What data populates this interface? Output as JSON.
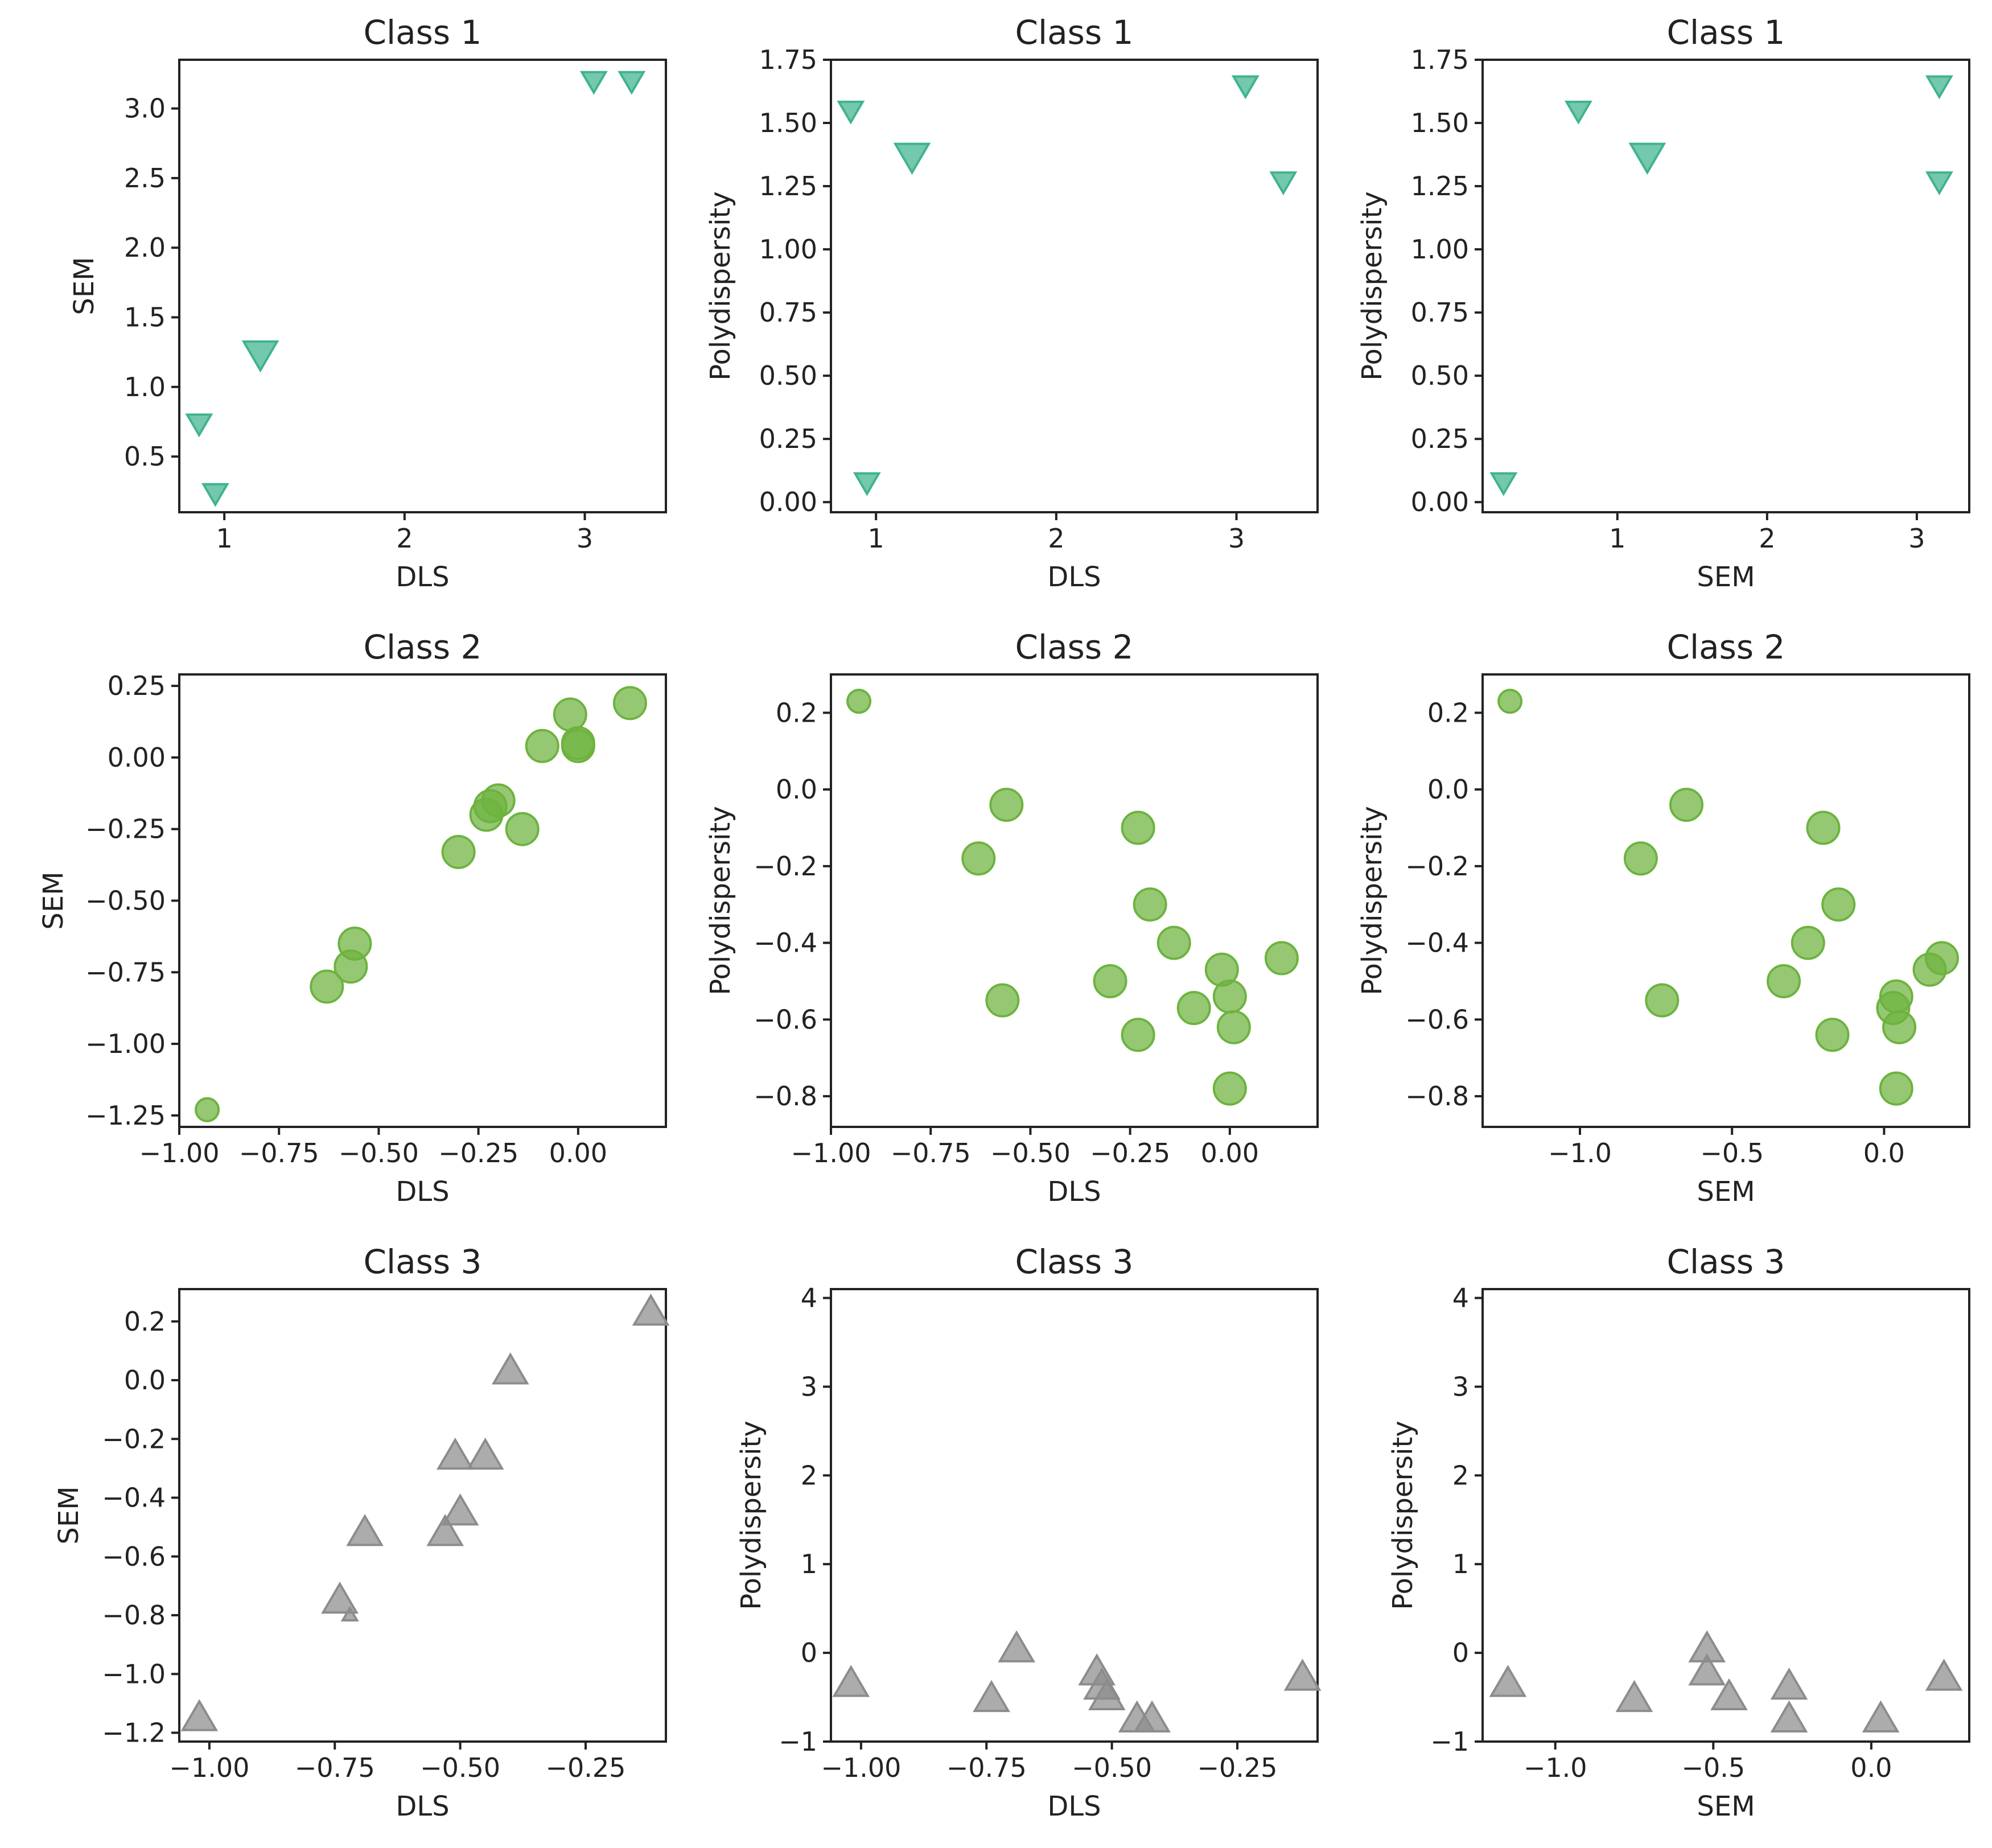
{
  "figure": {
    "style": {
      "class1_color": "#3fb38f",
      "class2_color": "#6db33f",
      "class3_color": "#8c8c8c"
    }
  },
  "chart_data": [
    {
      "type": "scatter",
      "title": "Class 1",
      "xlabel": "DLS",
      "ylabel": "SEM",
      "xlim": [
        0.75,
        3.45
      ],
      "ylim": [
        0.1,
        3.35
      ],
      "xticks": [
        1,
        2,
        3
      ],
      "xtick_labels": [
        "1",
        "2",
        "3"
      ],
      "yticks": [
        0.5,
        1.0,
        1.5,
        2.0,
        2.5,
        3.0
      ],
      "ytick_labels": [
        "0.5",
        "1.0",
        "1.5",
        "2.0",
        "2.5",
        "3.0"
      ],
      "marker": "triangle-down",
      "color_key": "class1_color",
      "points": [
        [
          0.86,
          0.74,
          1
        ],
        [
          0.95,
          0.24,
          1
        ],
        [
          1.2,
          1.24,
          1.4
        ],
        [
          3.05,
          3.2,
          1
        ],
        [
          3.26,
          3.2,
          1
        ]
      ]
    },
    {
      "type": "scatter",
      "title": "Class 1",
      "xlabel": "DLS",
      "ylabel": "Polydispersity",
      "xlim": [
        0.75,
        3.45
      ],
      "ylim": [
        -0.04,
        1.75
      ],
      "xticks": [
        1,
        2,
        3
      ],
      "xtick_labels": [
        "1",
        "2",
        "3"
      ],
      "yticks": [
        0.0,
        0.25,
        0.5,
        0.75,
        1.0,
        1.25,
        1.5,
        1.75
      ],
      "ytick_labels": [
        "0.00",
        "0.25",
        "0.50",
        "0.75",
        "1.00",
        "1.25",
        "1.50",
        "1.75"
      ],
      "marker": "triangle-down",
      "color_key": "class1_color",
      "points": [
        [
          0.86,
          1.55,
          1
        ],
        [
          0.95,
          0.08,
          1
        ],
        [
          1.2,
          1.37,
          1.4
        ],
        [
          3.05,
          1.65,
          1
        ],
        [
          3.26,
          1.27,
          1
        ]
      ]
    },
    {
      "type": "scatter",
      "title": "Class 1",
      "xlabel": "SEM",
      "ylabel": "Polydispersity",
      "xlim": [
        0.1,
        3.35
      ],
      "ylim": [
        -0.04,
        1.75
      ],
      "xticks": [
        1,
        2,
        3
      ],
      "xtick_labels": [
        "1",
        "2",
        "3"
      ],
      "yticks": [
        0.0,
        0.25,
        0.5,
        0.75,
        1.0,
        1.25,
        1.5,
        1.75
      ],
      "ytick_labels": [
        "0.00",
        "0.25",
        "0.50",
        "0.75",
        "1.00",
        "1.25",
        "1.50",
        "1.75"
      ],
      "marker": "triangle-down",
      "color_key": "class1_color",
      "points": [
        [
          0.24,
          0.08,
          1
        ],
        [
          0.74,
          1.55,
          1
        ],
        [
          1.2,
          1.37,
          1.4
        ],
        [
          3.15,
          1.65,
          1
        ],
        [
          3.15,
          1.27,
          1
        ]
      ]
    },
    {
      "type": "scatter",
      "title": "Class 2",
      "xlabel": "DLS",
      "ylabel": "SEM",
      "xlim": [
        -1.0,
        0.22
      ],
      "ylim": [
        -1.29,
        0.29
      ],
      "xticks": [
        -1.0,
        -0.75,
        -0.5,
        -0.25,
        0.0
      ],
      "xtick_labels": [
        "−1.00",
        "−0.75",
        "−0.50",
        "−0.25",
        "0.00"
      ],
      "yticks": [
        -1.25,
        -1.0,
        -0.75,
        -0.5,
        -0.25,
        0.0,
        0.25
      ],
      "ytick_labels": [
        "−1.25",
        "−1.00",
        "−0.75",
        "−0.50",
        "−0.25",
        "0.00",
        "0.25"
      ],
      "marker": "circle",
      "color_key": "class2_color",
      "points": [
        [
          -0.93,
          -1.23,
          1
        ],
        [
          -0.63,
          -0.8,
          1.4
        ],
        [
          -0.57,
          -0.73,
          1.4
        ],
        [
          -0.56,
          -0.65,
          1.4
        ],
        [
          -0.3,
          -0.33,
          1.4
        ],
        [
          -0.23,
          -0.2,
          1.4
        ],
        [
          -0.22,
          -0.17,
          1.4
        ],
        [
          -0.2,
          -0.15,
          1.4
        ],
        [
          -0.14,
          -0.25,
          1.4
        ],
        [
          -0.09,
          0.04,
          1.4
        ],
        [
          -0.02,
          0.15,
          1.4
        ],
        [
          0.0,
          0.05,
          1.4
        ],
        [
          0.0,
          0.04,
          1.4
        ],
        [
          0.13,
          0.19,
          1.4
        ]
      ]
    },
    {
      "type": "scatter",
      "title": "Class 2",
      "xlabel": "DLS",
      "ylabel": "Polydispersity",
      "xlim": [
        -1.0,
        0.22
      ],
      "ylim": [
        -0.88,
        0.3
      ],
      "xticks": [
        -1.0,
        -0.75,
        -0.5,
        -0.25,
        0.0
      ],
      "xtick_labels": [
        "−1.00",
        "−0.75",
        "−0.50",
        "−0.25",
        "0.00"
      ],
      "yticks": [
        -0.8,
        -0.6,
        -0.4,
        -0.2,
        0.0,
        0.2
      ],
      "ytick_labels": [
        "−0.8",
        "−0.6",
        "−0.4",
        "−0.2",
        "0.0",
        "0.2"
      ],
      "marker": "circle",
      "color_key": "class2_color",
      "points": [
        [
          -0.93,
          0.23,
          1
        ],
        [
          -0.63,
          -0.18,
          1.4
        ],
        [
          -0.56,
          -0.04,
          1.4
        ],
        [
          -0.57,
          -0.55,
          1.4
        ],
        [
          -0.3,
          -0.5,
          1.4
        ],
        [
          -0.23,
          -0.1,
          1.4
        ],
        [
          -0.23,
          -0.64,
          1.4
        ],
        [
          -0.2,
          -0.3,
          1.4
        ],
        [
          -0.14,
          -0.4,
          1.4
        ],
        [
          -0.09,
          -0.57,
          1.4
        ],
        [
          -0.02,
          -0.47,
          1.4
        ],
        [
          0.0,
          -0.54,
          1.4
        ],
        [
          0.0,
          -0.78,
          1.4
        ],
        [
          0.01,
          -0.62,
          1.4
        ],
        [
          0.13,
          -0.44,
          1.4
        ]
      ]
    },
    {
      "type": "scatter",
      "title": "Class 2",
      "xlabel": "SEM",
      "ylabel": "Polydispersity",
      "xlim": [
        -1.32,
        0.28
      ],
      "ylim": [
        -0.88,
        0.3
      ],
      "xticks": [
        -1.0,
        -0.5,
        0.0
      ],
      "xtick_labels": [
        "−1.0",
        "−0.5",
        "0.0"
      ],
      "yticks": [
        -0.8,
        -0.6,
        -0.4,
        -0.2,
        0.0,
        0.2
      ],
      "ytick_labels": [
        "−0.8",
        "−0.6",
        "−0.4",
        "−0.2",
        "0.0",
        "0.2"
      ],
      "marker": "circle",
      "color_key": "class2_color",
      "points": [
        [
          -1.23,
          0.23,
          1
        ],
        [
          -0.8,
          -0.18,
          1.4
        ],
        [
          -0.65,
          -0.04,
          1.4
        ],
        [
          -0.73,
          -0.55,
          1.4
        ],
        [
          -0.33,
          -0.5,
          1.4
        ],
        [
          -0.25,
          -0.4,
          1.4
        ],
        [
          -0.2,
          -0.1,
          1.4
        ],
        [
          -0.17,
          -0.64,
          1.4
        ],
        [
          -0.15,
          -0.3,
          1.4
        ],
        [
          0.04,
          -0.54,
          1.4
        ],
        [
          0.03,
          -0.57,
          1.4
        ],
        [
          0.05,
          -0.62,
          1.4
        ],
        [
          0.04,
          -0.78,
          1.4
        ],
        [
          0.15,
          -0.47,
          1.4
        ],
        [
          0.19,
          -0.44,
          1.4
        ]
      ]
    },
    {
      "type": "scatter",
      "title": "Class 3",
      "xlabel": "DLS",
      "ylabel": "SEM",
      "xlim": [
        -1.06,
        -0.09
      ],
      "ylim": [
        -1.23,
        0.31
      ],
      "xticks": [
        -1.0,
        -0.75,
        -0.5,
        -0.25
      ],
      "xtick_labels": [
        "−1.00",
        "−0.75",
        "−0.50",
        "−0.25"
      ],
      "yticks": [
        -1.2,
        -1.0,
        -0.8,
        -0.6,
        -0.4,
        -0.2,
        0.0,
        0.2
      ],
      "ytick_labels": [
        "−1.2",
        "−1.0",
        "−0.8",
        "−0.6",
        "−0.4",
        "−0.2",
        "0.0",
        "0.2"
      ],
      "marker": "triangle-up",
      "color_key": "class3_color",
      "points": [
        [
          -1.02,
          -1.15,
          1.4
        ],
        [
          -0.74,
          -0.75,
          1.4
        ],
        [
          -0.72,
          -0.8,
          0.6
        ],
        [
          -0.69,
          -0.52,
          1.4
        ],
        [
          -0.53,
          -0.52,
          1.4
        ],
        [
          -0.51,
          -0.26,
          1.4
        ],
        [
          -0.5,
          -0.45,
          1.4
        ],
        [
          -0.45,
          -0.26,
          1.4
        ],
        [
          -0.4,
          0.03,
          1.4
        ],
        [
          -0.12,
          0.23,
          1.4
        ]
      ]
    },
    {
      "type": "scatter",
      "title": "Class 3",
      "xlabel": "DLS",
      "ylabel": "Polydispersity",
      "xlim": [
        -1.06,
        -0.09
      ],
      "ylim": [
        -1.0,
        4.1
      ],
      "xticks": [
        -1.0,
        -0.75,
        -0.5,
        -0.25
      ],
      "xtick_labels": [
        "−1.00",
        "−0.75",
        "−0.50",
        "−0.25"
      ],
      "yticks": [
        -1,
        0,
        1,
        2,
        3,
        4
      ],
      "ytick_labels": [
        "−1",
        "0",
        "1",
        "2",
        "3",
        "4"
      ],
      "marker": "triangle-up",
      "color_key": "class3_color",
      "points": [
        [
          -1.02,
          -0.35,
          1.4
        ],
        [
          -0.74,
          -0.52,
          1.4
        ],
        [
          -0.69,
          0.04,
          1.4
        ],
        [
          -0.53,
          -0.22,
          1.4
        ],
        [
          -0.52,
          -0.38,
          1.4
        ],
        [
          -0.51,
          -0.5,
          1.4
        ],
        [
          -0.45,
          -0.75,
          1.4
        ],
        [
          -0.42,
          -0.75,
          1.4
        ],
        [
          -0.12,
          -0.28,
          1.4
        ]
      ]
    },
    {
      "type": "scatter",
      "title": "Class 3",
      "xlabel": "SEM",
      "ylabel": "Polydispersity",
      "xlim": [
        -1.23,
        0.31
      ],
      "ylim": [
        -1.0,
        4.1
      ],
      "xticks": [
        -1.0,
        -0.5,
        0.0
      ],
      "xtick_labels": [
        "−1.0",
        "−0.5",
        "0.0"
      ],
      "yticks": [
        -1,
        0,
        1,
        2,
        3,
        4
      ],
      "ytick_labels": [
        "−1",
        "0",
        "1",
        "2",
        "3",
        "4"
      ],
      "marker": "triangle-up",
      "color_key": "class3_color",
      "points": [
        [
          -1.15,
          -0.35,
          1.4
        ],
        [
          -0.75,
          -0.52,
          1.4
        ],
        [
          -0.52,
          0.04,
          1.4
        ],
        [
          -0.52,
          -0.22,
          1.4
        ],
        [
          -0.45,
          -0.5,
          1.4
        ],
        [
          -0.26,
          -0.38,
          1.4
        ],
        [
          -0.26,
          -0.75,
          1.4
        ],
        [
          0.03,
          -0.75,
          1.4
        ],
        [
          0.23,
          -0.28,
          1.4
        ]
      ]
    }
  ]
}
